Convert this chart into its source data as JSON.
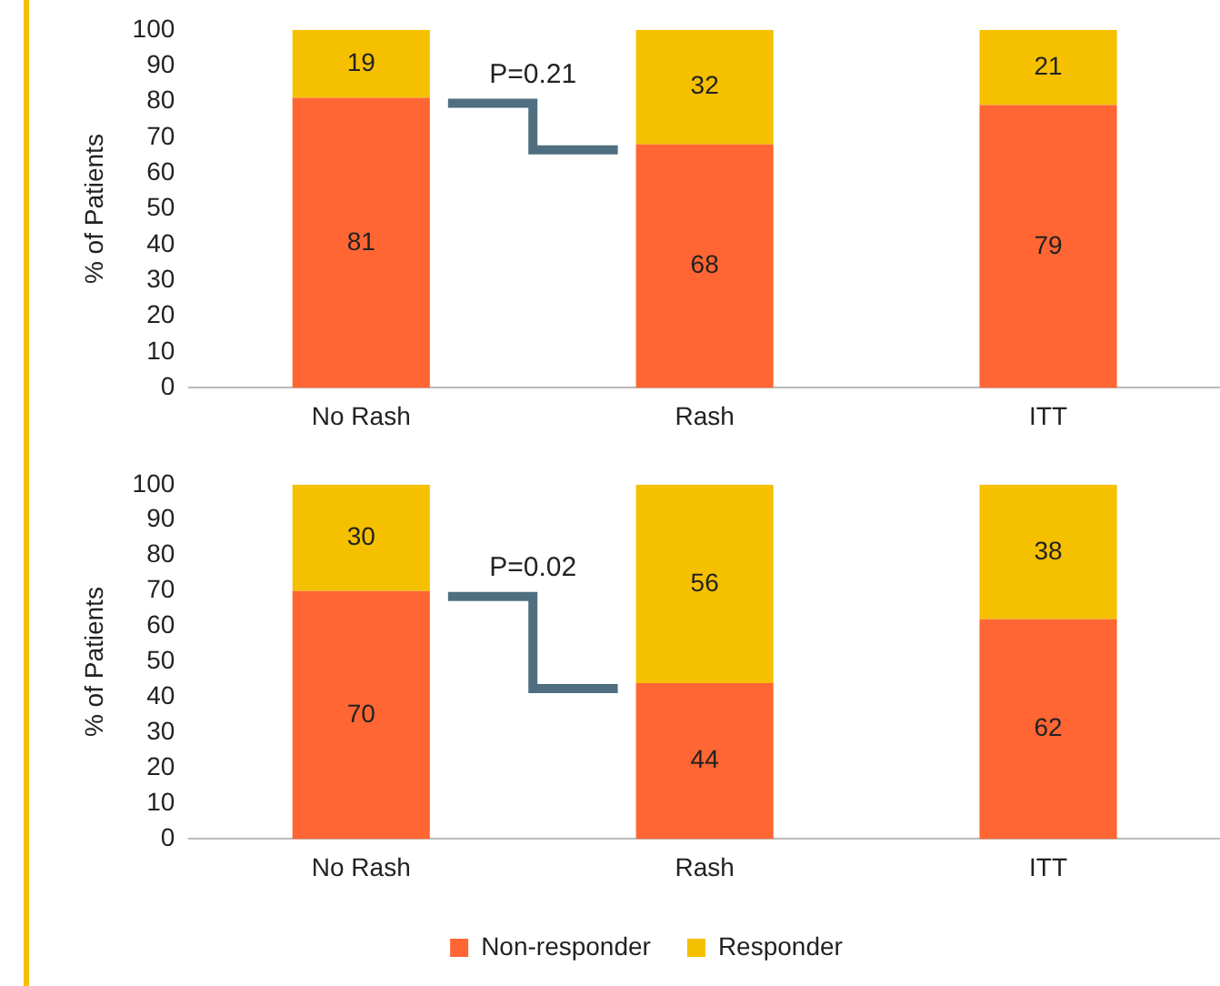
{
  "chart_data": [
    {
      "type": "bar",
      "stacked": true,
      "ylabel": "% of Patients",
      "categories": [
        "No Rash",
        "Rash",
        "ITT"
      ],
      "series": [
        {
          "color": "#ff6633",
          "values": [
            81,
            68,
            79
          ]
        },
        {
          "color": "#f5c000",
          "values": [
            19,
            32,
            21
          ]
        }
      ],
      "ylim": [
        0,
        100
      ],
      "yticks": [
        0,
        10,
        20,
        30,
        40,
        50,
        60,
        70,
        80,
        90,
        100
      ],
      "grid": false,
      "legend": false,
      "data_labels": true,
      "annotations": [
        "P=0.21"
      ]
    },
    {
      "type": "bar",
      "stacked": true,
      "ylabel": "% of Patients",
      "categories": [
        "No Rash",
        "Rash",
        "ITT"
      ],
      "series": [
        {
          "name": "Non-responder",
          "color": "#ff6633",
          "values": [
            70,
            44,
            62
          ]
        },
        {
          "name": "Responder",
          "color": "#f5c000",
          "values": [
            30,
            56,
            38
          ]
        }
      ],
      "ylim": [
        0,
        100
      ],
      "yticks": [
        0,
        10,
        20,
        30,
        40,
        50,
        60,
        70,
        80,
        90,
        100
      ],
      "grid": false,
      "legend": "bottom",
      "data_labels": true,
      "annotations": [
        "P=0.02"
      ]
    }
  ]
}
